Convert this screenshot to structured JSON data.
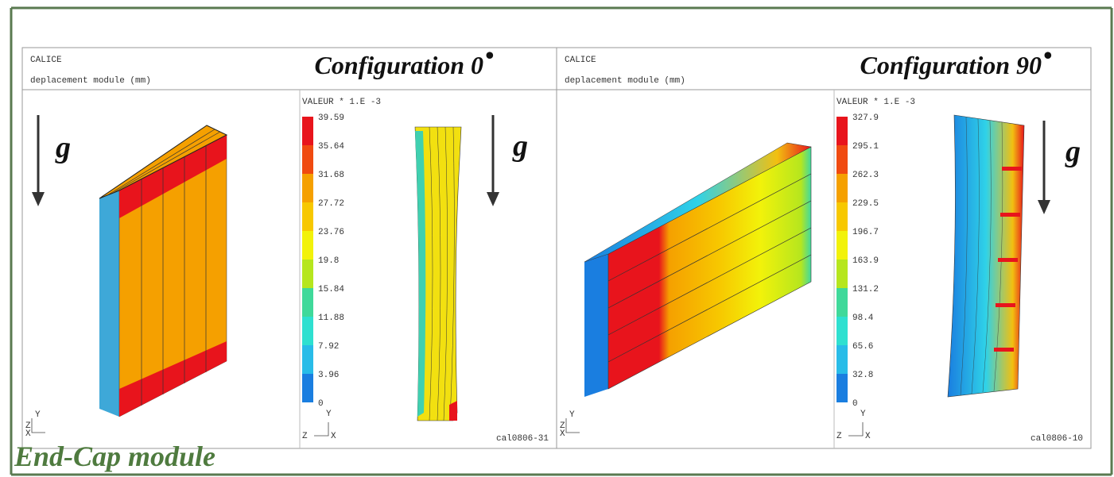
{
  "title": "End-Cap module",
  "panels": [
    {
      "header": "CALICE",
      "subtitle": "deplacement module (mm)",
      "config": "Configuration 0",
      "config_mark": "•",
      "scale_title": "VALEUR * 1.E -3",
      "scale_labels": [
        "39.59",
        "35.64",
        "31.68",
        "27.72",
        "23.76",
        "19.8",
        "15.84",
        "11.88",
        "7.92",
        "3.96",
        "0"
      ],
      "gravity": [
        "g",
        "g"
      ],
      "axes": [
        "Z",
        "Y",
        "X"
      ],
      "axes2": [
        "Y",
        "Z",
        "X"
      ],
      "ref": "cal0806-31"
    },
    {
      "header": "CALICE",
      "subtitle": "deplacement module (mm)",
      "config": "Configuration 90",
      "config_mark": "•",
      "scale_title": "VALEUR * 1.E -3",
      "scale_labels": [
        "327.9",
        "295.1",
        "262.3",
        "229.5",
        "196.7",
        "163.9",
        "131.2",
        "98.4",
        "65.6",
        "32.8",
        "0"
      ],
      "gravity": [
        "g"
      ],
      "axes": [
        "Z",
        "Y",
        "X"
      ],
      "axes2": [
        "Y",
        "Z",
        "X"
      ],
      "ref": "cal0806-10"
    }
  ]
}
